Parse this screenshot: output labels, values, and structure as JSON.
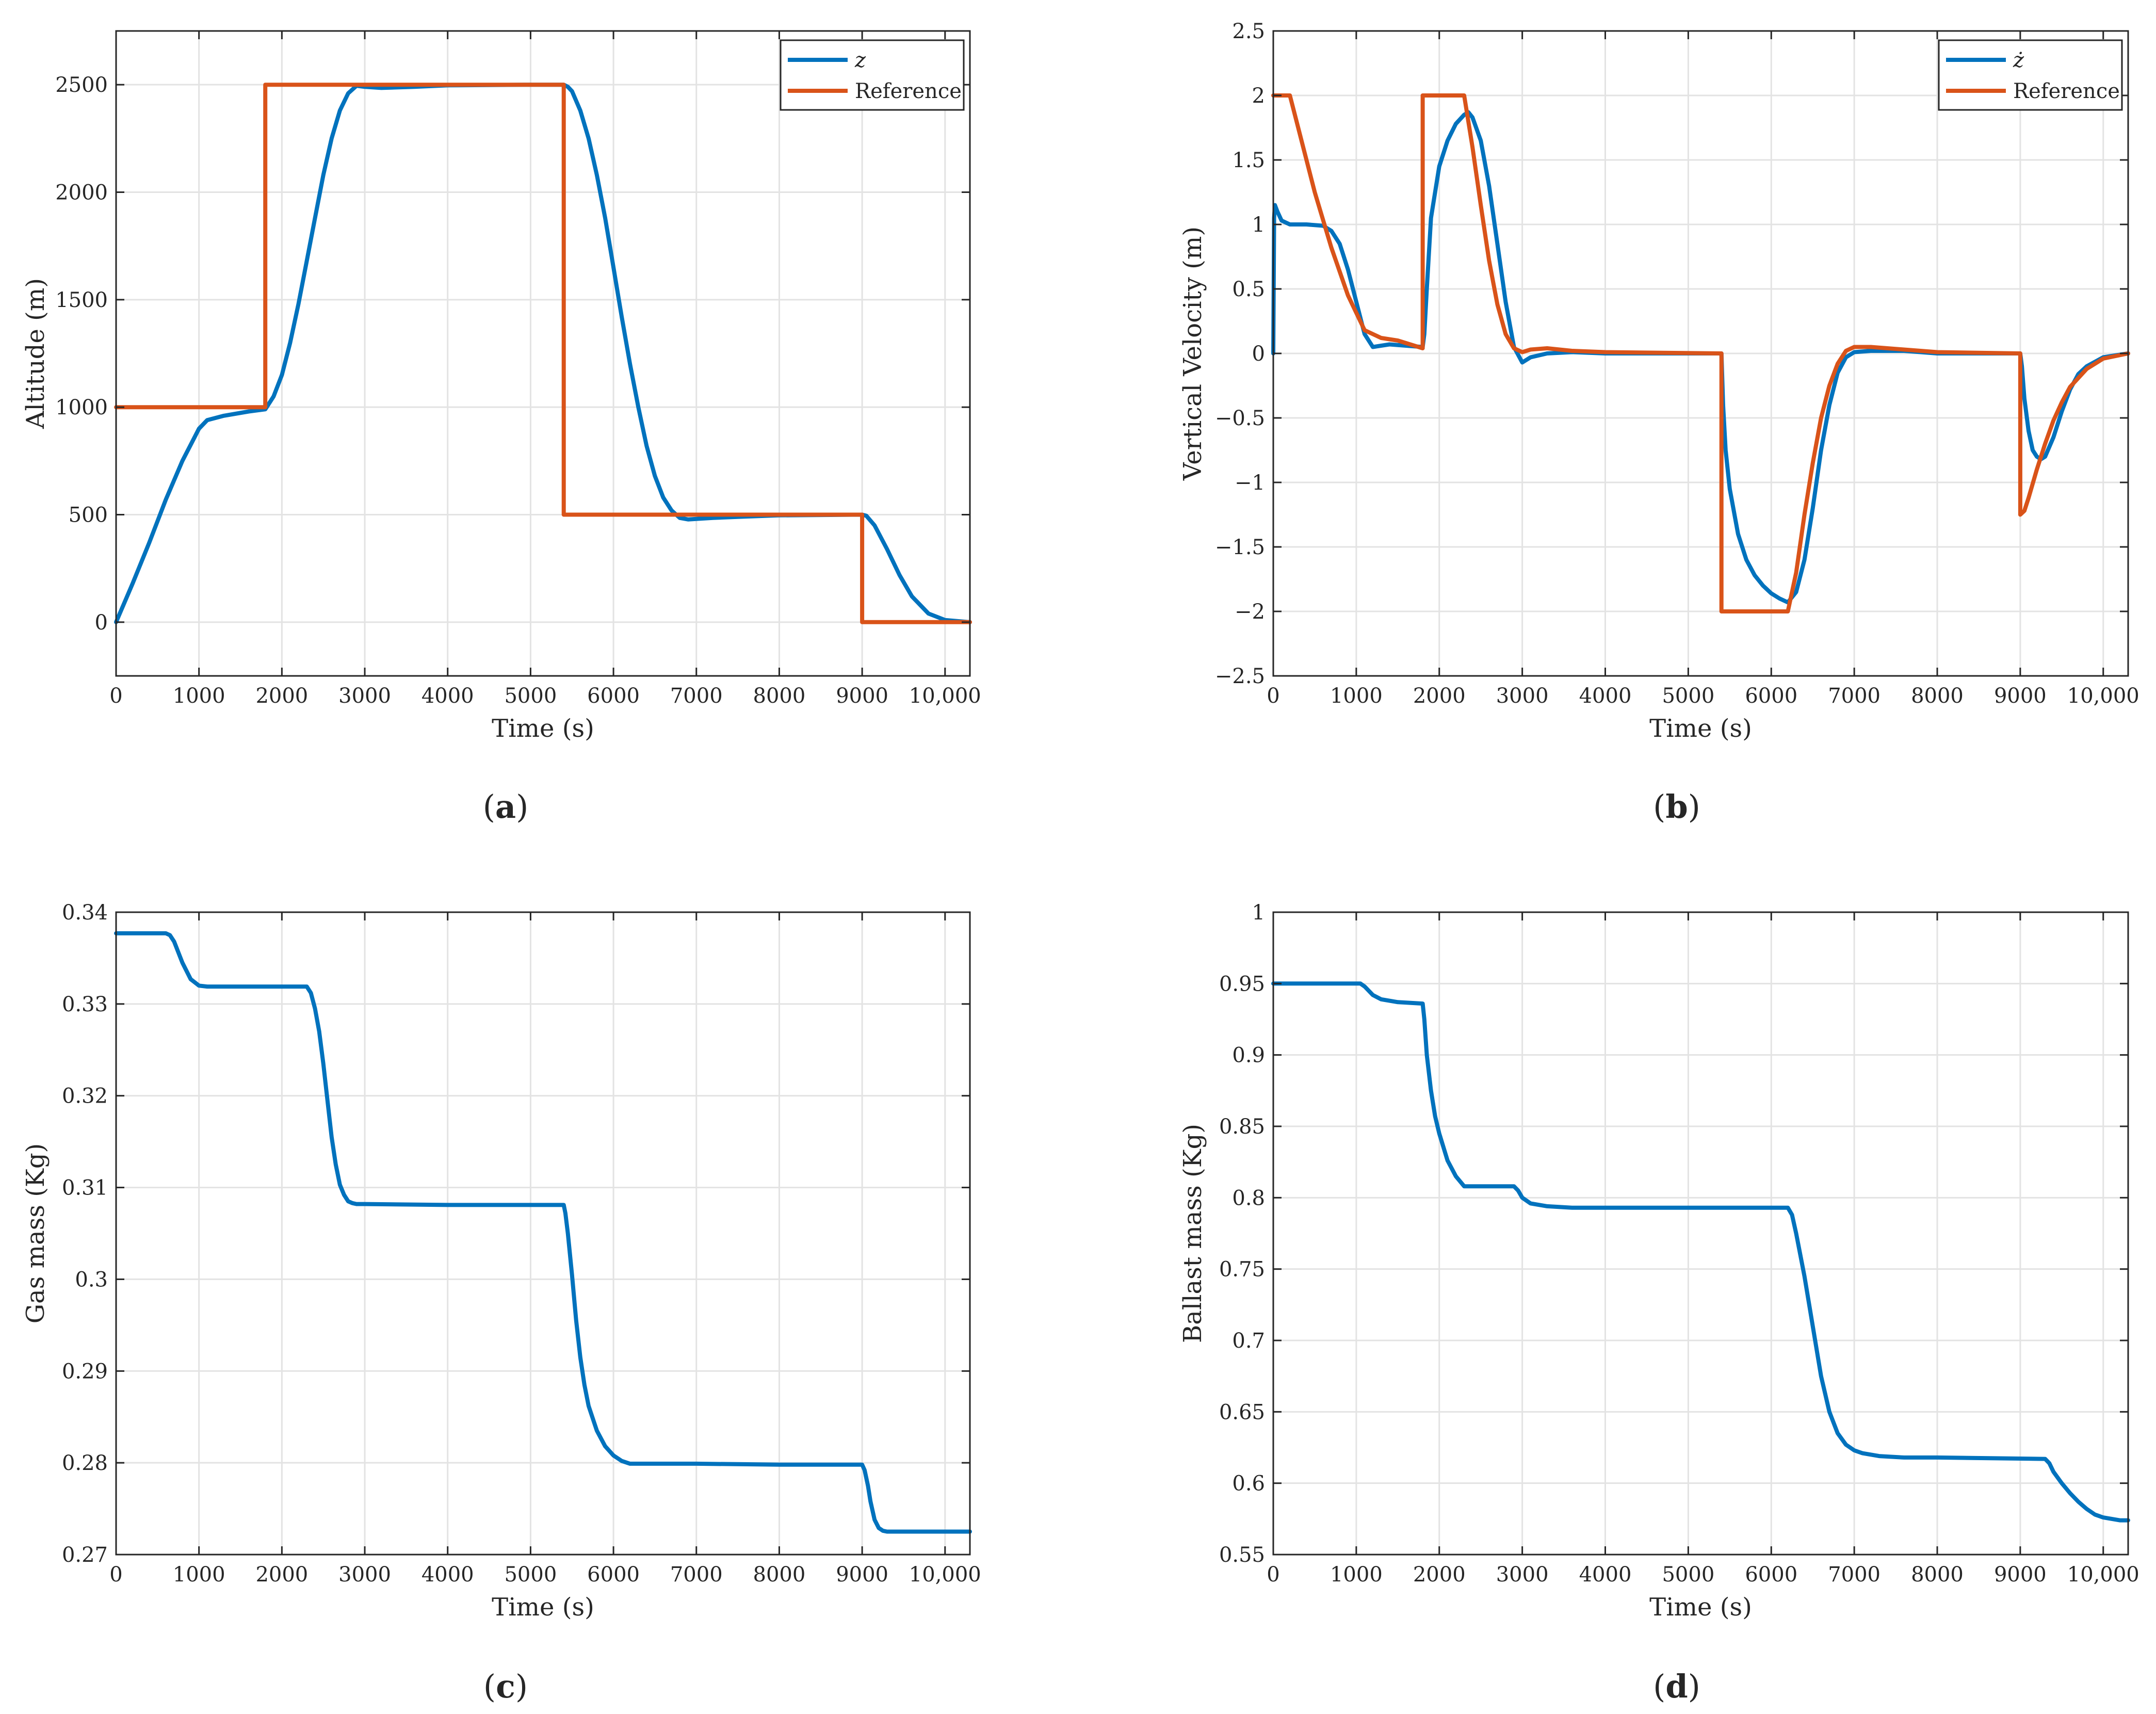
{
  "colors": {
    "blue": "#0072BD",
    "orange": "#D95319",
    "grid": "#e3e3e3",
    "axis": "#262626"
  },
  "chart_data": [
    {
      "id": "a",
      "type": "line",
      "panel_label": "a",
      "xlabel": "Time (s)",
      "ylabel": "Altitude (m)",
      "xlim": [
        0,
        10300
      ],
      "ylim": [
        -250,
        2750
      ],
      "xticks": [
        0,
        1000,
        2000,
        3000,
        4000,
        5000,
        6000,
        7000,
        8000,
        9000,
        10000
      ],
      "xtick_labels": [
        "0",
        "1000",
        "2000",
        "3000",
        "4000",
        "5000",
        "6000",
        "7000",
        "8000",
        "9000",
        "10,000"
      ],
      "yticks": [
        0,
        500,
        1000,
        1500,
        2000,
        2500
      ],
      "ytick_labels": [
        "0",
        "500",
        "1000",
        "1500",
        "2000",
        "2500"
      ],
      "grid": true,
      "legend_position": "top-right",
      "series": [
        {
          "name": "z",
          "legend_label": "z",
          "color": "#0072BD",
          "x": [
            0,
            200,
            400,
            600,
            800,
            1000,
            1100,
            1300,
            1600,
            1800,
            1900,
            2000,
            2100,
            2200,
            2300,
            2400,
            2500,
            2600,
            2700,
            2800,
            2900,
            3000,
            3200,
            3600,
            4000,
            5000,
            5400,
            5450,
            5500,
            5600,
            5700,
            5800,
            5900,
            6000,
            6100,
            6200,
            6300,
            6400,
            6500,
            6600,
            6700,
            6800,
            6900,
            7000,
            7200,
            7500,
            8000,
            9000,
            9050,
            9150,
            9300,
            9450,
            9600,
            9800,
            10000,
            10300
          ],
          "y": [
            0,
            180,
            370,
            570,
            750,
            900,
            940,
            960,
            980,
            990,
            1050,
            1150,
            1300,
            1480,
            1680,
            1880,
            2080,
            2250,
            2380,
            2460,
            2495,
            2490,
            2485,
            2490,
            2497,
            2500,
            2500,
            2490,
            2470,
            2380,
            2250,
            2080,
            1880,
            1650,
            1420,
            1200,
            1000,
            820,
            680,
            580,
            520,
            485,
            478,
            480,
            485,
            490,
            497,
            500,
            495,
            450,
            340,
            220,
            120,
            40,
            10,
            0
          ]
        },
        {
          "name": "Reference",
          "legend_label": "Reference",
          "color": "#D95319",
          "x": [
            0,
            1800,
            1800,
            5400,
            5400,
            9000,
            9000,
            10300
          ],
          "y": [
            1000,
            1000,
            2500,
            2500,
            500,
            500,
            0,
            0
          ]
        }
      ]
    },
    {
      "id": "b",
      "type": "line",
      "panel_label": "b",
      "xlabel": "Time (s)",
      "ylabel": "Vertical Velocity (m)",
      "xlim": [
        0,
        10300
      ],
      "ylim": [
        -2.5,
        2.5
      ],
      "xticks": [
        0,
        1000,
        2000,
        3000,
        4000,
        5000,
        6000,
        7000,
        8000,
        9000,
        10000
      ],
      "xtick_labels": [
        "0",
        "1000",
        "2000",
        "3000",
        "4000",
        "5000",
        "6000",
        "7000",
        "8000",
        "9000",
        "10,000"
      ],
      "yticks": [
        -2.5,
        -2,
        -1.5,
        -1,
        -0.5,
        0,
        0.5,
        1,
        1.5,
        2,
        2.5
      ],
      "ytick_labels": [
        "−2.5",
        "−2",
        "−1.5",
        "−1",
        "−0.5",
        "0",
        "0.5",
        "1",
        "1.5",
        "2",
        "2.5"
      ],
      "grid": true,
      "legend_position": "top-right",
      "series": [
        {
          "name": "z-dot",
          "legend_label": "ż",
          "color": "#0072BD",
          "x": [
            0,
            10,
            20,
            50,
            100,
            200,
            400,
            600,
            700,
            800,
            900,
            1000,
            1100,
            1200,
            1400,
            1600,
            1800,
            1820,
            1850,
            1900,
            2000,
            2100,
            2200,
            2300,
            2350,
            2400,
            2500,
            2600,
            2700,
            2800,
            2900,
            3000,
            3100,
            3300,
            3600,
            4000,
            5000,
            5400,
            5420,
            5450,
            5500,
            5600,
            5700,
            5800,
            5900,
            6000,
            6100,
            6200,
            6300,
            6400,
            6500,
            6600,
            6700,
            6800,
            6900,
            7000,
            7200,
            7600,
            8000,
            9000,
            9020,
            9050,
            9100,
            9150,
            9200,
            9250,
            9300,
            9400,
            9500,
            9600,
            9700,
            9800,
            10000,
            10300
          ],
          "y": [
            0,
            1.05,
            1.15,
            1.1,
            1.03,
            1.0,
            1.0,
            0.99,
            0.95,
            0.85,
            0.65,
            0.4,
            0.15,
            0.05,
            0.07,
            0.06,
            0.05,
            0.15,
            0.5,
            1.05,
            1.45,
            1.65,
            1.78,
            1.85,
            1.87,
            1.83,
            1.65,
            1.3,
            0.85,
            0.4,
            0.05,
            -0.07,
            -0.03,
            0.0,
            0.01,
            0.0,
            0.0,
            0.0,
            -0.4,
            -0.75,
            -1.05,
            -1.4,
            -1.6,
            -1.72,
            -1.8,
            -1.86,
            -1.9,
            -1.93,
            -1.85,
            -1.6,
            -1.2,
            -0.75,
            -0.4,
            -0.15,
            -0.03,
            0.01,
            0.02,
            0.02,
            0.0,
            0.0,
            -0.1,
            -0.35,
            -0.6,
            -0.75,
            -0.8,
            -0.82,
            -0.8,
            -0.65,
            -0.45,
            -0.28,
            -0.16,
            -0.1,
            -0.03,
            0.0
          ]
        },
        {
          "name": "Reference",
          "legend_label": "Reference",
          "color": "#D95319",
          "x": [
            0,
            200,
            300,
            500,
            700,
            900,
            1100,
            1300,
            1500,
            1800,
            1800,
            2300,
            2400,
            2500,
            2600,
            2700,
            2800,
            2900,
            3000,
            3100,
            3300,
            3600,
            4000,
            5400,
            5400,
            6200,
            6300,
            6400,
            6500,
            6600,
            6700,
            6800,
            6900,
            7000,
            7200,
            7600,
            8000,
            9000,
            9000,
            9050,
            9100,
            9200,
            9300,
            9400,
            9500,
            9600,
            9800,
            10000,
            10300
          ],
          "y": [
            2.0,
            2.0,
            1.75,
            1.25,
            0.82,
            0.45,
            0.18,
            0.12,
            0.1,
            0.04,
            2.0,
            2.0,
            1.6,
            1.15,
            0.72,
            0.38,
            0.15,
            0.04,
            0.01,
            0.03,
            0.04,
            0.02,
            0.01,
            0.0,
            -2.0,
            -2.0,
            -1.7,
            -1.25,
            -0.85,
            -0.5,
            -0.25,
            -0.08,
            0.02,
            0.05,
            0.05,
            0.03,
            0.01,
            0.0,
            -1.25,
            -1.22,
            -1.12,
            -0.9,
            -0.7,
            -0.52,
            -0.38,
            -0.26,
            -0.12,
            -0.04,
            0.0
          ]
        }
      ]
    },
    {
      "id": "c",
      "type": "line",
      "panel_label": "c",
      "xlabel": "Time (s)",
      "ylabel": "Gas mass (Kg)",
      "xlim": [
        0,
        10300
      ],
      "ylim": [
        0.27,
        0.34
      ],
      "xticks": [
        0,
        1000,
        2000,
        3000,
        4000,
        5000,
        6000,
        7000,
        8000,
        9000,
        10000
      ],
      "xtick_labels": [
        "0",
        "1000",
        "2000",
        "3000",
        "4000",
        "5000",
        "6000",
        "7000",
        "8000",
        "9000",
        "10,000"
      ],
      "yticks": [
        0.27,
        0.28,
        0.29,
        0.3,
        0.31,
        0.32,
        0.33,
        0.34
      ],
      "ytick_labels": [
        "0.27",
        "0.28",
        "0.29",
        "0.3",
        "0.31",
        "0.32",
        "0.33",
        "0.34"
      ],
      "grid": true,
      "legend_position": "none",
      "series": [
        {
          "name": "Gas mass",
          "color": "#0072BD",
          "x": [
            0,
            600,
            650,
            700,
            800,
            900,
            1000,
            1100,
            2000,
            2300,
            2350,
            2400,
            2450,
            2500,
            2550,
            2600,
            2650,
            2700,
            2750,
            2800,
            2850,
            2900,
            3000,
            4000,
            5400,
            5420,
            5450,
            5500,
            5550,
            5600,
            5650,
            5700,
            5800,
            5900,
            6000,
            6100,
            6200,
            7000,
            8000,
            9000,
            9030,
            9070,
            9100,
            9150,
            9200,
            9250,
            9300,
            10300
          ],
          "y": [
            0.3377,
            0.3377,
            0.3375,
            0.3368,
            0.3345,
            0.3327,
            0.332,
            0.3319,
            0.3319,
            0.3319,
            0.3312,
            0.3295,
            0.327,
            0.3235,
            0.3195,
            0.3155,
            0.3125,
            0.3103,
            0.3092,
            0.3085,
            0.3083,
            0.3082,
            0.3082,
            0.3081,
            0.3081,
            0.3072,
            0.305,
            0.3005,
            0.2955,
            0.2915,
            0.2885,
            0.2862,
            0.2835,
            0.2818,
            0.2808,
            0.2802,
            0.2799,
            0.2799,
            0.2798,
            0.2798,
            0.2792,
            0.2775,
            0.2758,
            0.2738,
            0.2729,
            0.2726,
            0.2725,
            0.2725
          ]
        }
      ]
    },
    {
      "id": "d",
      "type": "line",
      "panel_label": "d",
      "xlabel": "Time (s)",
      "ylabel": "Ballast mass (Kg)",
      "xlim": [
        0,
        10300
      ],
      "ylim": [
        0.55,
        1.0
      ],
      "xticks": [
        0,
        1000,
        2000,
        3000,
        4000,
        5000,
        6000,
        7000,
        8000,
        9000,
        10000
      ],
      "xtick_labels": [
        "0",
        "1000",
        "2000",
        "3000",
        "4000",
        "5000",
        "6000",
        "7000",
        "8000",
        "9000",
        "10,000"
      ],
      "yticks": [
        0.55,
        0.6,
        0.65,
        0.7,
        0.75,
        0.8,
        0.85,
        0.9,
        0.95,
        1.0
      ],
      "ytick_labels": [
        "0.55",
        "0.6",
        "0.65",
        "0.7",
        "0.75",
        "0.8",
        "0.85",
        "0.9",
        "0.95",
        "1"
      ],
      "grid": true,
      "legend_position": "none",
      "series": [
        {
          "name": "Ballast mass",
          "color": "#0072BD",
          "x": [
            0,
            1050,
            1100,
            1200,
            1300,
            1500,
            1800,
            1820,
            1850,
            1900,
            1950,
            2000,
            2100,
            2200,
            2300,
            2900,
            2950,
            3000,
            3100,
            3300,
            3600,
            4000,
            6200,
            6250,
            6300,
            6400,
            6500,
            6600,
            6700,
            6800,
            6900,
            7000,
            7100,
            7300,
            7600,
            8000,
            9300,
            9350,
            9400,
            9500,
            9600,
            9700,
            9800,
            9900,
            10000,
            10100,
            10200,
            10300
          ],
          "y": [
            0.95,
            0.95,
            0.948,
            0.942,
            0.939,
            0.937,
            0.936,
            0.925,
            0.9,
            0.875,
            0.857,
            0.845,
            0.826,
            0.815,
            0.808,
            0.808,
            0.805,
            0.8,
            0.796,
            0.794,
            0.793,
            0.793,
            0.793,
            0.788,
            0.775,
            0.745,
            0.71,
            0.675,
            0.65,
            0.635,
            0.627,
            0.623,
            0.621,
            0.619,
            0.618,
            0.618,
            0.617,
            0.614,
            0.608,
            0.6,
            0.593,
            0.587,
            0.582,
            0.578,
            0.576,
            0.575,
            0.574,
            0.574
          ]
        }
      ]
    }
  ]
}
